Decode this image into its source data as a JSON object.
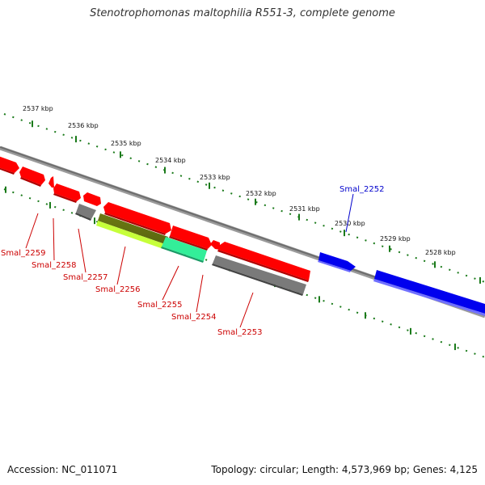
{
  "header": {
    "title": "Stenotrophomonas maltophilia R551-3, complete genome"
  },
  "footer": {
    "accession": "Accession: NC_011071",
    "summary": "Topology: circular; Length: 4,573,969 bp; Genes: 4,125"
  },
  "colors": {
    "backbone": "#7f7f7f",
    "scale_ticks": "#1a7a1a",
    "gene_red": "#ff0000",
    "gene_blue": "#0000ee",
    "gene_gray": "#6e6e6e",
    "gene_olive": "#6b7a12",
    "gene_lime": "#c6ff3a",
    "gene_aqua": "#33ee99",
    "label_red": "#cc0000",
    "label_blue": "#0000cc"
  },
  "scale": {
    "unit": "kbp",
    "labels": [
      "2537 kbp",
      "2536 kbp",
      "2535 kbp",
      "2534 kbp",
      "2533 kbp",
      "2532 kbp",
      "2531 kbp",
      "2530 kbp",
      "2529 kbp",
      "2528 kbp"
    ]
  },
  "genes": [
    {
      "name": "Smal_2259",
      "color": "gene_red"
    },
    {
      "name": "Smal_2258",
      "color": "gene_red"
    },
    {
      "name": "Smal_2257",
      "color": "gene_gray"
    },
    {
      "name": "Smal_2256",
      "color": "gene_red"
    },
    {
      "name": "Smal_2255",
      "color": "gene_aqua"
    },
    {
      "name": "Smal_2254",
      "color": "gene_red"
    },
    {
      "name": "Smal_2253",
      "color": "gene_gray"
    },
    {
      "name": "Smal_2252",
      "color": "gene_blue"
    }
  ]
}
